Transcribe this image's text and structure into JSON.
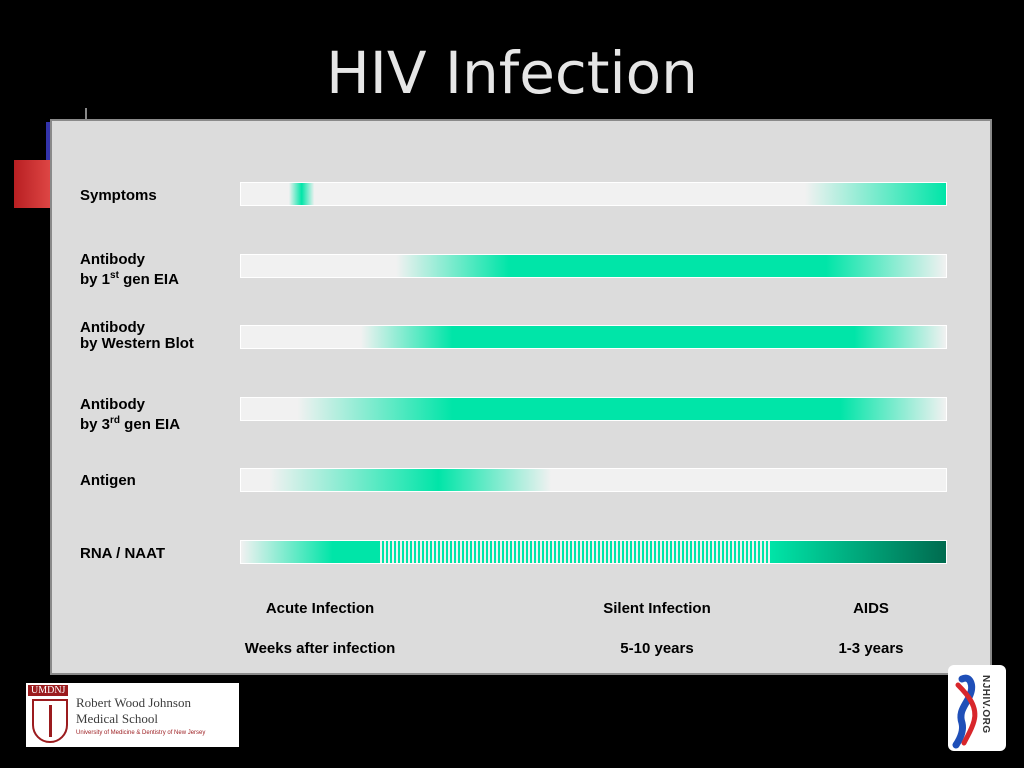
{
  "slide": {
    "title": "HIV Infection"
  },
  "rows": [
    {
      "line1": "Symptoms",
      "line2_pre": "",
      "line2_sup": "",
      "line2_post": ""
    },
    {
      "line1": "Antibody",
      "line2_pre": "by 1",
      "line2_sup": "st",
      "line2_post": " gen EIA"
    },
    {
      "line1": "Antibody",
      "line2_pre": "by Western Blot",
      "line2_sup": "",
      "line2_post": ""
    },
    {
      "line1": "Antibody",
      "line2_pre": "by 3",
      "line2_sup": "rd",
      "line2_post": " gen EIA"
    },
    {
      "line1": "Antigen",
      "line2_pre": "",
      "line2_sup": "",
      "line2_post": ""
    },
    {
      "line1": "RNA / NAAT",
      "line2_pre": "",
      "line2_sup": "",
      "line2_post": ""
    }
  ],
  "phases": {
    "acute": "Acute Infection",
    "silent": "Silent Infection",
    "aids": "AIDS"
  },
  "durations": {
    "acute": "Weeks after infection",
    "silent": "5-10 years",
    "aids": "1-3 years"
  },
  "logos": {
    "umdnj": "UMDNJ",
    "school_line1": "Robert Wood Johnson",
    "school_line2": "Medical School",
    "school_sub": "University of Medicine & Dentistry of New Jersey",
    "njhiv": "NJHIV.ORG"
  },
  "colors": {
    "accent": "#00e5a8",
    "dark_accent": "#006b4f",
    "bar_bg": "#f1f1f1",
    "panel_bg": "#dcdcdc"
  }
}
